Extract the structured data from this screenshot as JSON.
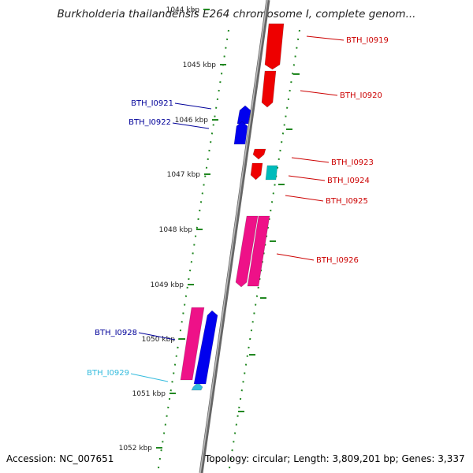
{
  "title": "Burkholderia thailandensis E264 chromosome I, complete genom...",
  "accession": "Accession: NC_007651",
  "topology": "Topology: circular; Length: 3,809,201 bp; Genes: 3,337",
  "ticks": [
    "1044 kbp",
    "1045 kbp",
    "1046 kbp",
    "1047 kbp",
    "1048 kbp",
    "1049 kbp",
    "1050 kbp",
    "1051 kbp",
    "1052 kbp"
  ],
  "genes": [
    {
      "id": "BTH_I0919",
      "strand": "+",
      "color": "#ee0000"
    },
    {
      "id": "BTH_I0920",
      "strand": "+",
      "color": "#ee0000"
    },
    {
      "id": "BTH_I0921",
      "strand": "-",
      "color": "#0000ee"
    },
    {
      "id": "BTH_I0922",
      "strand": "-",
      "color": "#0000ee"
    },
    {
      "id": "BTH_I0923",
      "strand": "+",
      "color": "#ee0000"
    },
    {
      "id": "BTH_I0924",
      "strand": "+",
      "color": "#00bbbb"
    },
    {
      "id": "BTH_I0925",
      "strand": "+",
      "color": "#ee0000"
    },
    {
      "id": "BTH_I0926",
      "strand": "+",
      "color": "#ee1188"
    },
    {
      "id": "BTH_I0928",
      "strand": "-",
      "color": "#ee1188"
    },
    {
      "id": "BTH_I0929",
      "strand": "-",
      "color": "#33bbdd"
    }
  ],
  "label_colors": {
    "plus": "#cc0000",
    "minus": "#000099",
    "cyan": "#33bbdd"
  }
}
